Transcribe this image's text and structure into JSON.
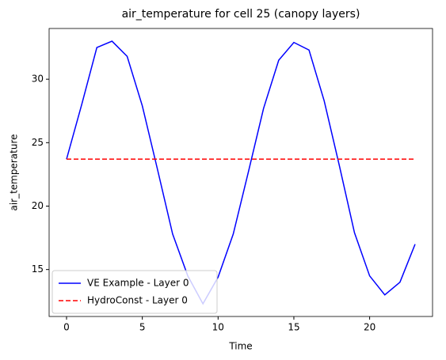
{
  "chart_data": {
    "type": "line",
    "title": "air_temperature for cell 25 (canopy layers)",
    "x_label": "Time",
    "y_label": "air_temperature",
    "x": [
      0,
      1,
      2,
      3,
      4,
      5,
      6,
      7,
      8,
      9,
      10,
      11,
      12,
      13,
      14,
      15,
      16,
      17,
      18,
      19,
      20,
      21,
      22,
      23
    ],
    "series": [
      {
        "name": "VE Example - Layer 0",
        "color": "#0000ff",
        "linestyle": "solid",
        "values": [
          23.7,
          28.0,
          32.5,
          33.0,
          31.8,
          27.9,
          22.9,
          17.8,
          14.5,
          12.3,
          14.4,
          17.8,
          22.7,
          27.7,
          31.5,
          32.9,
          32.3,
          28.3,
          23.2,
          17.9,
          14.5,
          13.0,
          14.0,
          17.0
        ]
      },
      {
        "name": "HydroConst - Layer 0",
        "color": "#ff0000",
        "linestyle": "dashed",
        "values": [
          23.7,
          23.7,
          23.7,
          23.7,
          23.7,
          23.7,
          23.7,
          23.7,
          23.7,
          23.7,
          23.7,
          23.7,
          23.7,
          23.7,
          23.7,
          23.7,
          23.7,
          23.7,
          23.7,
          23.7,
          23.7,
          23.7,
          23.7,
          23.7
        ]
      }
    ],
    "xlim": [
      -1.15,
      24.15
    ],
    "xticks": [
      0,
      5,
      10,
      15,
      20
    ],
    "ylim": [
      11.3,
      34.0
    ],
    "yticks": [
      15,
      20,
      25,
      30
    ],
    "legend": "lower left",
    "grid": false
  }
}
